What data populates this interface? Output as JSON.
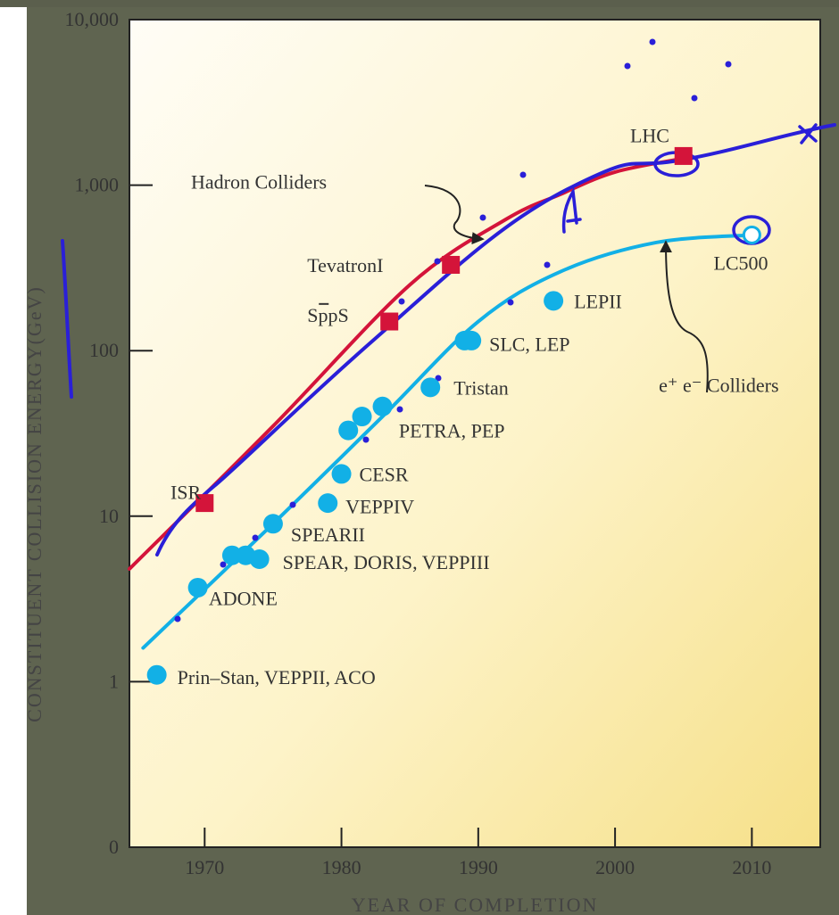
{
  "chart_data": {
    "type": "scatter",
    "title": "",
    "xlabel": "YEAR OF COMPLETION",
    "ylabel": "CONSTITUENT COLLISION ENERGY(GeV)",
    "x_range": [
      1964.5,
      2015
    ],
    "y_range_log10": [
      0,
      4
    ],
    "log_y": true,
    "grid": false,
    "x_ticks": [
      {
        "value": 1970,
        "label": "1970"
      },
      {
        "value": 1980,
        "label": "1980"
      },
      {
        "value": 1990,
        "label": "1990"
      },
      {
        "value": 2000,
        "label": "2000"
      },
      {
        "value": 2010,
        "label": "2010"
      }
    ],
    "y_ticks": [
      {
        "value": 0,
        "label": "0"
      },
      {
        "value": 1,
        "label": "1"
      },
      {
        "value": 10,
        "label": "10"
      },
      {
        "value": 100,
        "label": "100"
      },
      {
        "value": 1000,
        "label": "1,000"
      },
      {
        "value": 10000,
        "label": "10,000"
      }
    ],
    "colors": {
      "hadron": "#d4143a",
      "ee": "#12b0e6",
      "annotation": "#2a1fd8",
      "arrow": "#222222",
      "background_top": "#fffdf6",
      "background_bottom": "#f6e089"
    },
    "series": [
      {
        "name": "Hadron Colliders",
        "marker": "square",
        "color": "#d4143a",
        "points": [
          {
            "x": 1970,
            "y": 12
          },
          {
            "x": 1983.5,
            "y": 150
          },
          {
            "x": 1988,
            "y": 330
          },
          {
            "x": 2005,
            "y": 1500
          }
        ],
        "trend": [
          {
            "x": 1964.5,
            "y": 4.8
          },
          {
            "x": 1975,
            "y": 35
          },
          {
            "x": 1985,
            "y": 250
          },
          {
            "x": 1992,
            "y": 620
          },
          {
            "x": 1996,
            "y": 880
          },
          {
            "x": 2000,
            "y": 1200
          },
          {
            "x": 2005,
            "y": 1450
          }
        ]
      },
      {
        "name": "e⁺e⁻ Colliders",
        "marker": "circle",
        "color": "#12b0e6",
        "points": [
          {
            "x": 1966.5,
            "y": 1.1
          },
          {
            "x": 1969.5,
            "y": 3.7
          },
          {
            "x": 1972,
            "y": 5.8
          },
          {
            "x": 1973,
            "y": 5.8
          },
          {
            "x": 1974,
            "y": 5.5
          },
          {
            "x": 1975,
            "y": 9
          },
          {
            "x": 1979,
            "y": 12
          },
          {
            "x": 1980,
            "y": 18
          },
          {
            "x": 1980.5,
            "y": 33
          },
          {
            "x": 1981.5,
            "y": 40
          },
          {
            "x": 1983,
            "y": 46
          },
          {
            "x": 1986.5,
            "y": 60
          },
          {
            "x": 1989,
            "y": 115
          },
          {
            "x": 1989.5,
            "y": 115
          },
          {
            "x": 1995.5,
            "y": 200
          },
          {
            "x": 2010,
            "y": 500,
            "hollow": true
          }
        ],
        "trend": [
          {
            "x": 1965.5,
            "y": 1.6
          },
          {
            "x": 1975,
            "y": 9
          },
          {
            "x": 1983,
            "y": 40
          },
          {
            "x": 1990,
            "y": 150
          },
          {
            "x": 1996,
            "y": 300
          },
          {
            "x": 2003,
            "y": 450
          },
          {
            "x": 2010,
            "y": 500
          }
        ]
      }
    ],
    "point_labels": [
      {
        "text": "ISR",
        "x": 1967.5,
        "y": 14
      },
      {
        "text": "SppS",
        "bar_over": "p",
        "x": 1977.5,
        "y": 165
      },
      {
        "text": "TevatronI",
        "x": 1977.5,
        "y": 330
      },
      {
        "text": "LHC",
        "x": 2001.1,
        "y": 2000
      },
      {
        "text": "LC500",
        "x": 2007.2,
        "y": 340
      },
      {
        "text": "LEPII",
        "x": 1997,
        "y": 200
      },
      {
        "text": "SLC, LEP",
        "x": 1990.8,
        "y": 110
      },
      {
        "text": "Tristan",
        "x": 1988.2,
        "y": 60
      },
      {
        "text": "PETRA, PEP",
        "x": 1984.2,
        "y": 33
      },
      {
        "text": "CESR",
        "x": 1981.3,
        "y": 18
      },
      {
        "text": "VEPPIV",
        "x": 1980.3,
        "y": 11.5
      },
      {
        "text": "SPEARII",
        "x": 1976.3,
        "y": 7.8
      },
      {
        "text": "SPEAR, DORIS, VEPPIII",
        "x": 1975.7,
        "y": 5.3
      },
      {
        "text": "ADONE",
        "x": 1970.3,
        "y": 3.2
      },
      {
        "text": "Prin–Stan, VEPPII, ACO",
        "x": 1968,
        "y": 1.07
      }
    ],
    "annotations": [
      {
        "text": "Hadron Colliders",
        "x": 1969,
        "y": 1050
      },
      {
        "text": "e⁺ e⁻ Colliders",
        "x": 2003.2,
        "y": 62
      }
    ]
  }
}
